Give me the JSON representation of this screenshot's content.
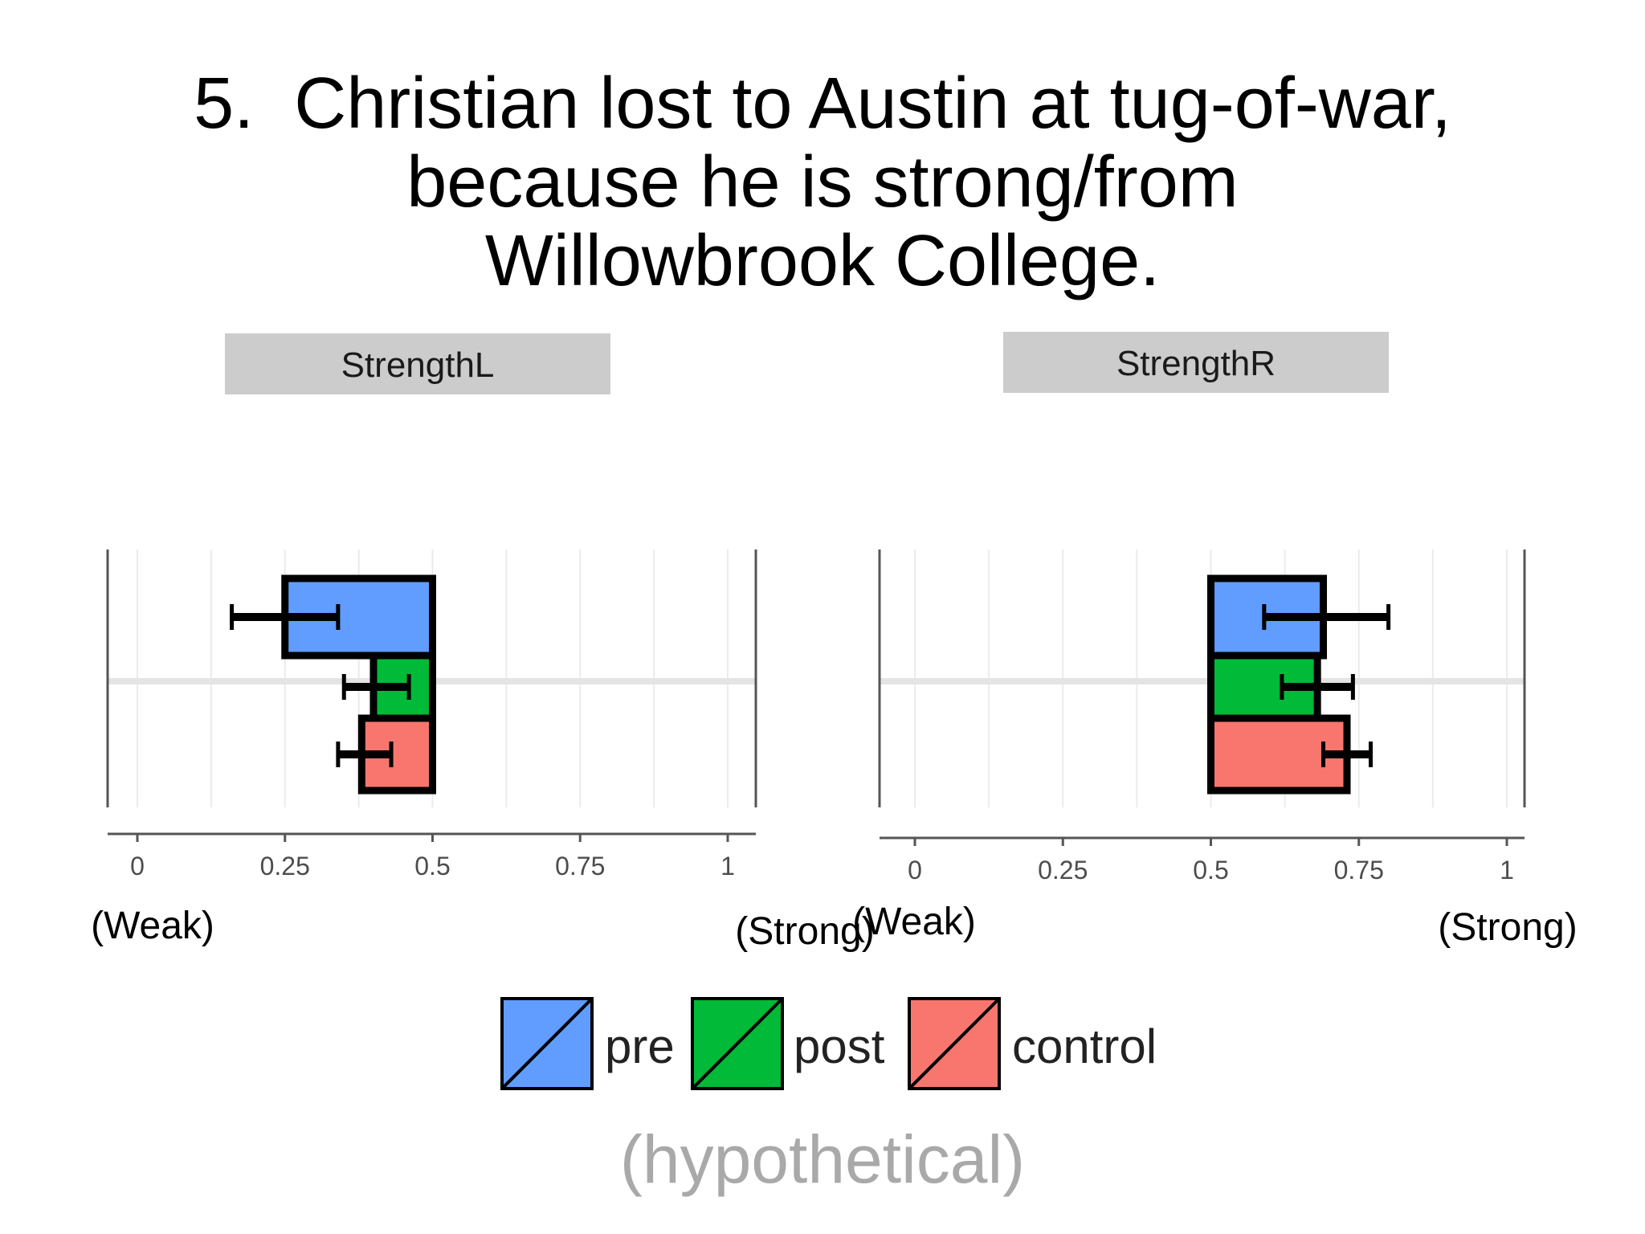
{
  "slide": {
    "title_lines": [
      "5.  Christian lost to Austin at tug-of-war,",
      "because he is strong/from",
      "Willowbrook College."
    ],
    "caption": "(hypothetical)"
  },
  "chart_data": [
    {
      "type": "bar",
      "orientation": "horizontal",
      "title": "StrengthL",
      "xlim": [
        0,
        1
      ],
      "xticks": [
        "0",
        "0.25",
        "0.5",
        "0.75",
        "1"
      ],
      "xtick_values": [
        0,
        0.25,
        0.5,
        0.75,
        1
      ],
      "axis_end_labels": {
        "left": "(Weak)",
        "right": "(Strong)"
      },
      "baseline": 0.5,
      "series": [
        {
          "name": "pre",
          "value": 0.25,
          "error": [
            0.16,
            0.34
          ],
          "color": "#619cff"
        },
        {
          "name": "post",
          "value": 0.4,
          "error": [
            0.35,
            0.46
          ],
          "color": "#00ba38"
        },
        {
          "name": "control",
          "value": 0.38,
          "error": [
            0.34,
            0.43
          ],
          "color": "#f8766d"
        }
      ]
    },
    {
      "type": "bar",
      "orientation": "horizontal",
      "title": "StrengthR",
      "xlim": [
        0,
        1
      ],
      "xticks": [
        "0",
        "0.25",
        "0.5",
        "0.75",
        "1"
      ],
      "xtick_values": [
        0,
        0.25,
        0.5,
        0.75,
        1
      ],
      "axis_end_labels": {
        "left": "(Weak)",
        "right": "(Strong)"
      },
      "baseline": 0.5,
      "series": [
        {
          "name": "pre",
          "value": 0.69,
          "error": [
            0.59,
            0.8
          ],
          "color": "#619cff"
        },
        {
          "name": "post",
          "value": 0.68,
          "error": [
            0.62,
            0.74
          ],
          "color": "#00ba38"
        },
        {
          "name": "control",
          "value": 0.73,
          "error": [
            0.69,
            0.77
          ],
          "color": "#f8766d"
        }
      ]
    }
  ],
  "legend": [
    {
      "label": "pre",
      "color": "#619cff"
    },
    {
      "label": "post",
      "color": "#00ba38"
    },
    {
      "label": "control",
      "color": "#f8766d"
    }
  ]
}
